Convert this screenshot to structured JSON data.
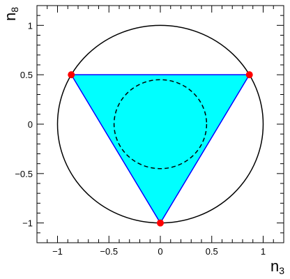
{
  "chart_data": {
    "type": "scatter",
    "title": "",
    "xlabel": "n",
    "xlabel_sub": "3",
    "ylabel": "n",
    "ylabel_sub": "8",
    "xlim": [
      -1.2,
      1.2
    ],
    "ylim": [
      -1.2,
      1.2
    ],
    "grid": false,
    "legend": "none",
    "x_ticks": [
      -1,
      -0.5,
      0,
      0.5,
      1
    ],
    "y_ticks": [
      -1,
      -0.5,
      0,
      0.5,
      1
    ],
    "x_tick_labels": [
      "−1",
      "−0.5",
      "0",
      "0.5",
      "1"
    ],
    "y_tick_labels": [
      "−1",
      "−0.5",
      "0",
      "0.5",
      "1"
    ],
    "points": [
      {
        "x": -0.866,
        "y": 0.5
      },
      {
        "x": 0.866,
        "y": 0.5
      },
      {
        "x": 0.0,
        "y": -1.0
      }
    ],
    "triangle": {
      "vertices": [
        [
          -0.866,
          0.5
        ],
        [
          0.866,
          0.5
        ],
        [
          0.0,
          -1.0
        ]
      ],
      "fill": "#00ffff",
      "stroke": "#0000ff"
    },
    "circles": [
      {
        "name": "outer",
        "cx": 0,
        "cy": 0,
        "r": 1.0,
        "style": "solid",
        "color": "#000000"
      },
      {
        "name": "inner",
        "cx": 0,
        "cy": 0,
        "r": 0.45,
        "style": "dashed",
        "color": "#000000"
      }
    ],
    "marker_color": "#ff0000"
  }
}
